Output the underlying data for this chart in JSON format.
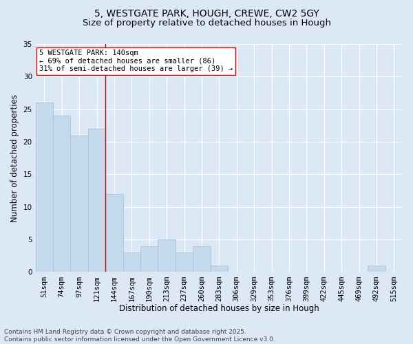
{
  "title1": "5, WESTGATE PARK, HOUGH, CREWE, CW2 5GY",
  "title2": "Size of property relative to detached houses in Hough",
  "xlabel": "Distribution of detached houses by size in Hough",
  "ylabel": "Number of detached properties",
  "categories": [
    "51sqm",
    "74sqm",
    "97sqm",
    "121sqm",
    "144sqm",
    "167sqm",
    "190sqm",
    "213sqm",
    "237sqm",
    "260sqm",
    "283sqm",
    "306sqm",
    "329sqm",
    "353sqm",
    "376sqm",
    "399sqm",
    "422sqm",
    "445sqm",
    "469sqm",
    "492sqm",
    "515sqm"
  ],
  "values": [
    26,
    24,
    21,
    22,
    12,
    3,
    4,
    5,
    3,
    4,
    1,
    0,
    0,
    0,
    0,
    0,
    0,
    0,
    0,
    1,
    0
  ],
  "bar_color": "#c5d9ed",
  "bar_edge_color": "#a0bfd8",
  "highlight_index": 3,
  "highlight_line_color": "#cc0000",
  "ylim": [
    0,
    35
  ],
  "yticks": [
    0,
    5,
    10,
    15,
    20,
    25,
    30,
    35
  ],
  "bg_color": "#dce8f5",
  "grid_color": "#ffffff",
  "annotation_text": "5 WESTGATE PARK: 140sqm\n← 69% of detached houses are smaller (86)\n31% of semi-detached houses are larger (39) →",
  "annotation_box_color": "#ffffff",
  "annotation_box_edge": "#cc0000",
  "footer_text": "Contains HM Land Registry data © Crown copyright and database right 2025.\nContains public sector information licensed under the Open Government Licence v3.0.",
  "title_fontsize": 10,
  "subtitle_fontsize": 9.5,
  "axis_label_fontsize": 8.5,
  "tick_fontsize": 7.5,
  "annotation_fontsize": 7.5,
  "footer_fontsize": 6.5
}
